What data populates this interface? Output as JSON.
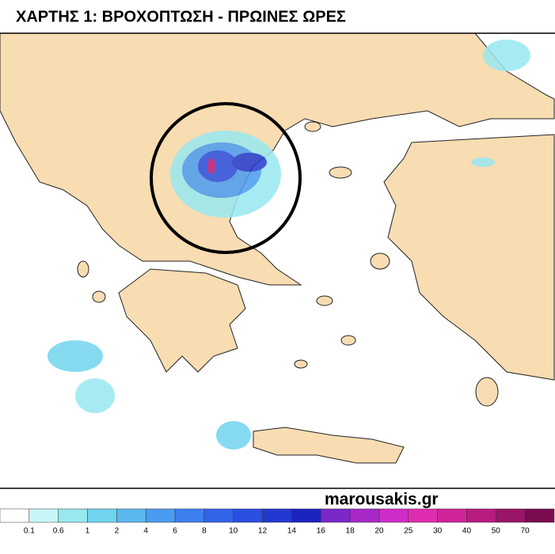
{
  "header": {
    "title": "ΧΑΡΤΗΣ 1: ΒΡΟΧΟΠΤΩΣΗ - ΠΡΩΙΝΕΣ ΩΡΕΣ"
  },
  "watermark": "marousakis.gr",
  "legend": {
    "labels": [
      "0.1",
      "0.6",
      "1",
      "2",
      "4",
      "6",
      "8",
      "10",
      "12",
      "14",
      "16",
      "18",
      "20",
      "25",
      "30",
      "40",
      "50",
      "70"
    ],
    "colors": [
      "#ffffff",
      "#c8f6f8",
      "#98e8f0",
      "#70d4ee",
      "#5ab8ec",
      "#4a9cf0",
      "#3c80f0",
      "#3264ea",
      "#2a4ee0",
      "#2238d0",
      "#1c24c0",
      "#7a28c8",
      "#a828c8",
      "#d02cc8",
      "#e02cb0",
      "#d02498",
      "#b81c80",
      "#9a1468",
      "#7a0c50"
    ]
  }
}
